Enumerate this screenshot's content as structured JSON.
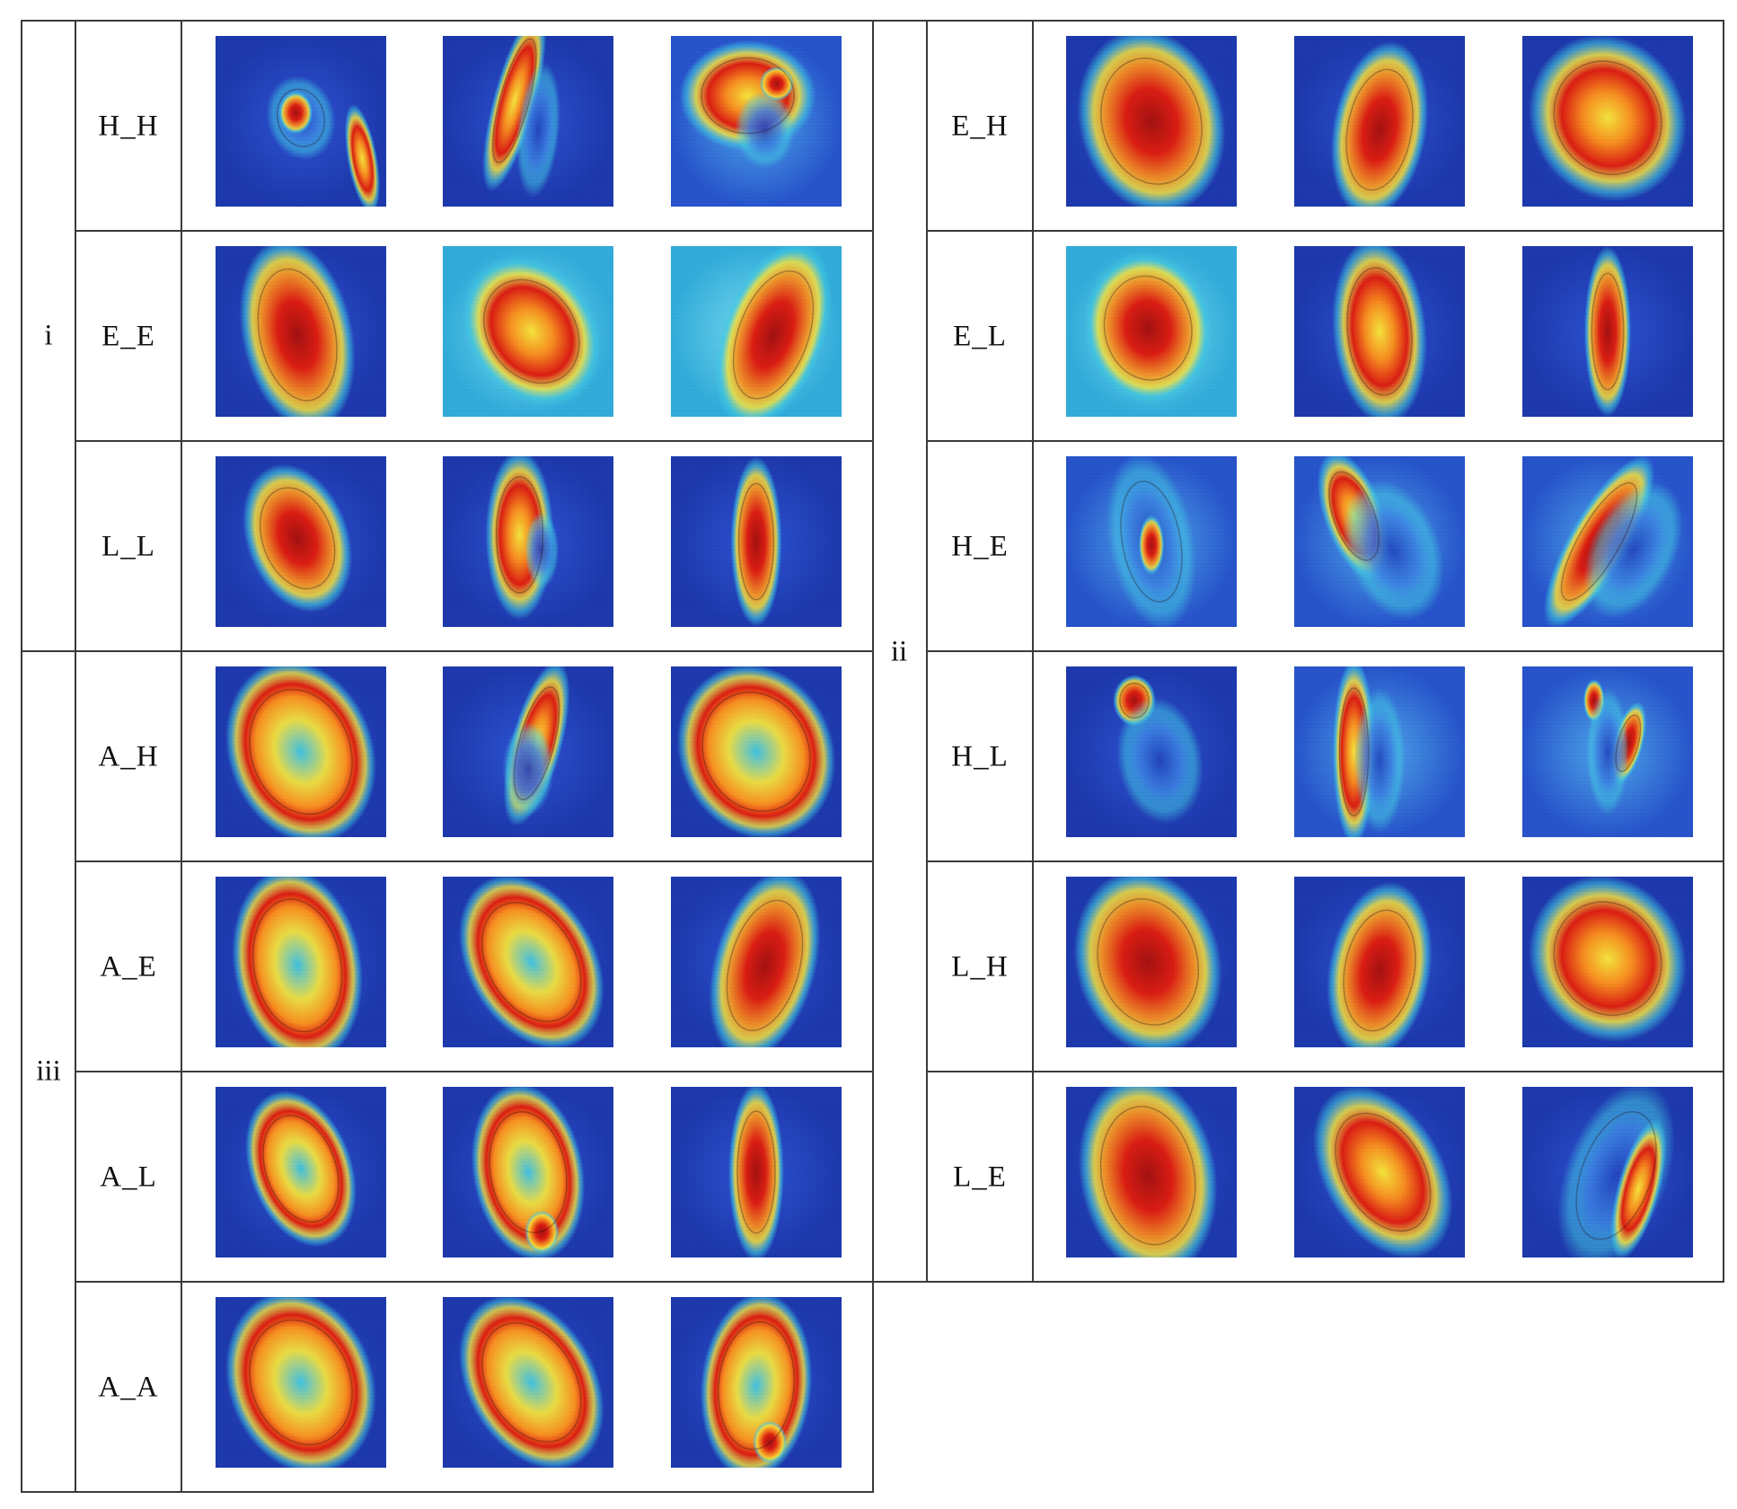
{
  "groups": [
    {
      "label": "i",
      "rows": [
        {
          "label": "H_H",
          "maps": [
            {
              "style": "hh1",
              "icon": "heatmap-ear-icon"
            },
            {
              "style": "hh2",
              "icon": "heatmap-ear-icon"
            },
            {
              "style": "hh3",
              "icon": "heatmap-ear-icon"
            }
          ]
        },
        {
          "label": "E_E",
          "maps": [
            {
              "style": "ee1",
              "icon": "heatmap-ear-icon"
            },
            {
              "style": "ee2",
              "icon": "heatmap-ear-icon"
            },
            {
              "style": "ee3",
              "icon": "heatmap-ear-icon"
            }
          ]
        },
        {
          "label": "L_L",
          "maps": [
            {
              "style": "ll1",
              "icon": "heatmap-ear-icon"
            },
            {
              "style": "ll2",
              "icon": "heatmap-ear-icon"
            },
            {
              "style": "ll3",
              "icon": "heatmap-ear-icon"
            }
          ]
        }
      ]
    },
    {
      "label": "ii",
      "rows": [
        {
          "label": "E_H",
          "maps": [
            {
              "style": "eh1",
              "icon": "heatmap-ear-icon"
            },
            {
              "style": "eh2",
              "icon": "heatmap-ear-icon"
            },
            {
              "style": "eh3",
              "icon": "heatmap-ear-icon"
            }
          ]
        },
        {
          "label": "E_L",
          "maps": [
            {
              "style": "el1",
              "icon": "heatmap-ear-icon"
            },
            {
              "style": "el2",
              "icon": "heatmap-ear-icon"
            },
            {
              "style": "el3",
              "icon": "heatmap-ear-icon"
            }
          ]
        },
        {
          "label": "H_E",
          "maps": [
            {
              "style": "he1",
              "icon": "heatmap-ear-icon"
            },
            {
              "style": "he2",
              "icon": "heatmap-ear-icon"
            },
            {
              "style": "he3",
              "icon": "heatmap-ear-icon"
            }
          ]
        },
        {
          "label": "H_L",
          "maps": [
            {
              "style": "hl1",
              "icon": "heatmap-ear-icon"
            },
            {
              "style": "hl2",
              "icon": "heatmap-ear-icon"
            },
            {
              "style": "hl3",
              "icon": "heatmap-ear-icon"
            }
          ]
        },
        {
          "label": "L_H",
          "maps": [
            {
              "style": "lh1",
              "icon": "heatmap-ear-icon"
            },
            {
              "style": "lh2",
              "icon": "heatmap-ear-icon"
            },
            {
              "style": "lh3",
              "icon": "heatmap-ear-icon"
            }
          ]
        },
        {
          "label": "L_E",
          "maps": [
            {
              "style": "le1",
              "icon": "heatmap-ear-icon"
            },
            {
              "style": "le2",
              "icon": "heatmap-ear-icon"
            },
            {
              "style": "le3",
              "icon": "heatmap-ear-icon"
            }
          ]
        }
      ]
    },
    {
      "label": "iii",
      "rows": [
        {
          "label": "A_H",
          "maps": [
            {
              "style": "ah1",
              "icon": "heatmap-ear-icon"
            },
            {
              "style": "ah2",
              "icon": "heatmap-ear-icon"
            },
            {
              "style": "ah3",
              "icon": "heatmap-ear-icon"
            }
          ]
        },
        {
          "label": "A_E",
          "maps": [
            {
              "style": "ae1",
              "icon": "heatmap-ear-icon"
            },
            {
              "style": "ae2",
              "icon": "heatmap-ear-icon"
            },
            {
              "style": "ae3",
              "icon": "heatmap-ear-icon"
            }
          ]
        },
        {
          "label": "A_L",
          "maps": [
            {
              "style": "al1",
              "icon": "heatmap-ear-icon"
            },
            {
              "style": "al2",
              "icon": "heatmap-ear-icon"
            },
            {
              "style": "al3",
              "icon": "heatmap-ear-icon"
            }
          ]
        },
        {
          "label": "A_A",
          "maps": [
            {
              "style": "aa1",
              "icon": "heatmap-ear-icon"
            },
            {
              "style": "aa2",
              "icon": "heatmap-ear-icon"
            },
            {
              "style": "aa3",
              "icon": "heatmap-ear-icon"
            }
          ]
        }
      ]
    }
  ],
  "colors": {
    "cold": "#1f3fb8",
    "cyan": "#3fc9e0",
    "yellow": "#f2e13a",
    "orange": "#f58a1f",
    "hot": "#d81c12",
    "core": "#9e1010",
    "grid_line": "#3a3a3a"
  }
}
